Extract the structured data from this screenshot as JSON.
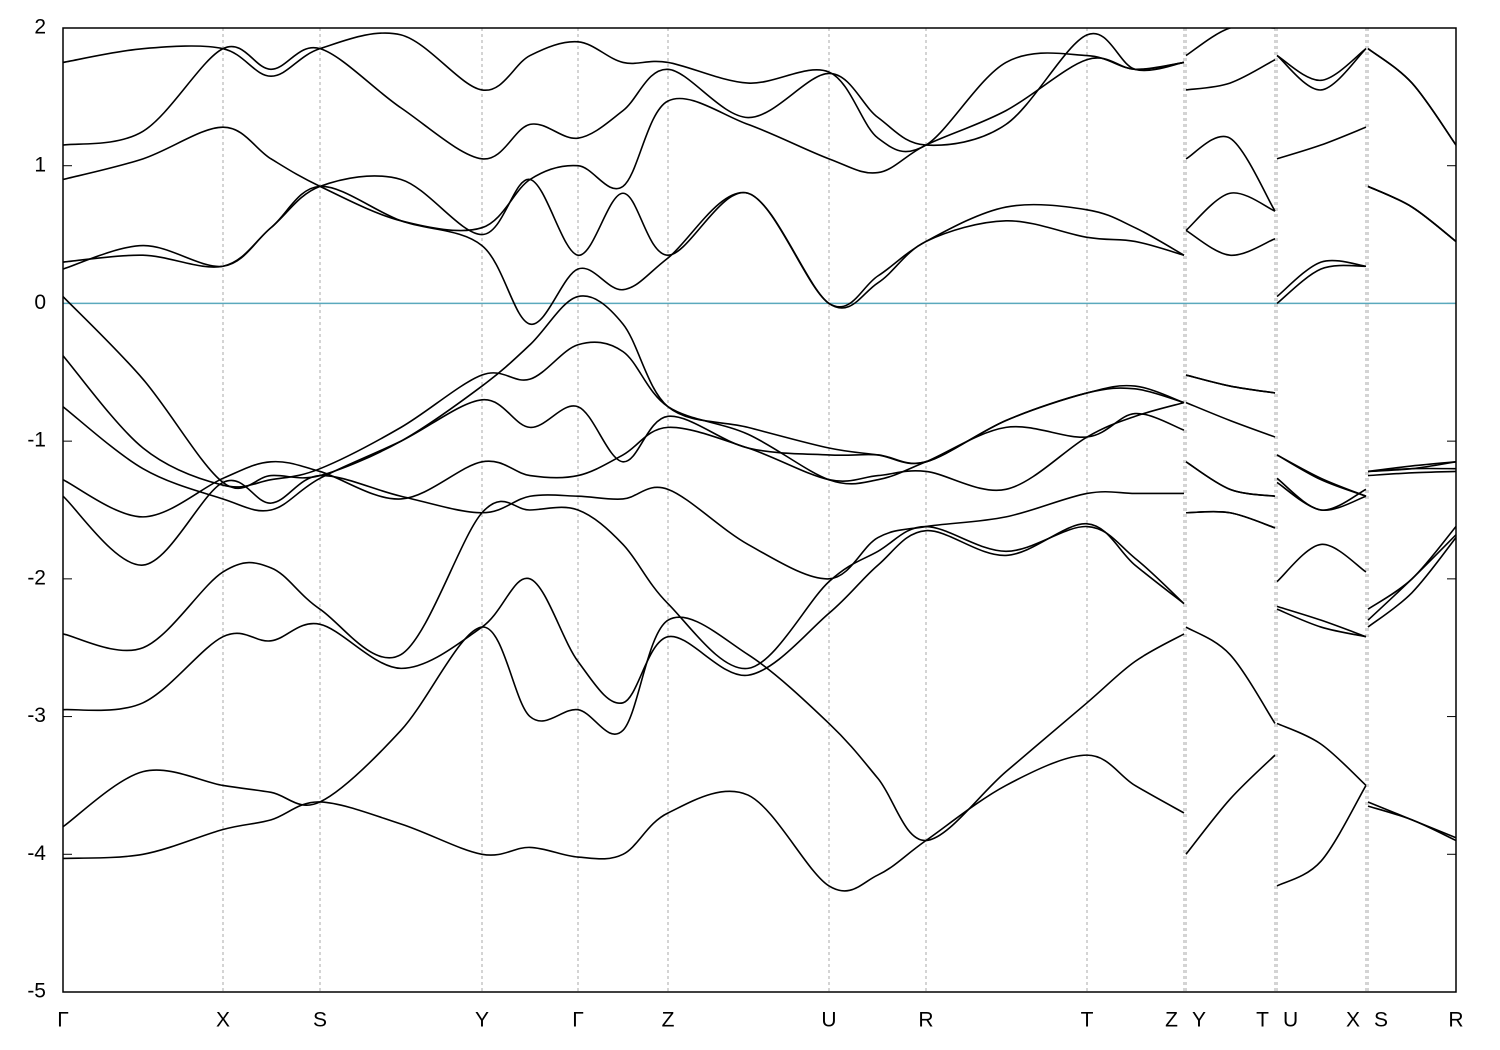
{
  "chart_data": {
    "type": "line",
    "xlim": [
      0,
      1393
    ],
    "ylim": [
      -5,
      2
    ],
    "yticks": [
      -5,
      -4,
      -3,
      -2,
      -1,
      0,
      1,
      2
    ],
    "xticks": [
      {
        "value": 0,
        "label": "Γ"
      },
      {
        "value": 160,
        "label": "X"
      },
      {
        "value": 257,
        "label": "S"
      },
      {
        "value": 419,
        "label": "Y"
      },
      {
        "value": 515,
        "label": "Γ"
      },
      {
        "value": 605,
        "label": "Z"
      },
      {
        "value": 766,
        "label": "U"
      },
      {
        "value": 863,
        "label": "R"
      },
      {
        "value": 1024,
        "label": "T"
      },
      {
        "value": 1121,
        "label": "Z"
      },
      {
        "value": 1123,
        "label": "Y"
      },
      {
        "value": 1212,
        "label": "T"
      },
      {
        "value": 1214,
        "label": "U"
      },
      {
        "value": 1303,
        "label": "X"
      },
      {
        "value": 1305,
        "label": "S"
      },
      {
        "value": 1393,
        "label": "R"
      }
    ],
    "grid": true,
    "hline": {
      "value": 0,
      "color": "#5aa9bd"
    },
    "x": [
      0,
      80,
      160,
      208,
      257,
      338,
      419,
      467,
      515,
      560,
      605,
      685,
      766,
      815,
      863,
      943,
      1024,
      1072,
      1121,
      1122,
      1123,
      1167,
      1212,
      1213,
      1214,
      1258,
      1303,
      1304,
      1305,
      1349,
      1393
    ],
    "series": [
      {
        "color": "#000000",
        "values": [
          -4.03,
          -4.0,
          -3.82,
          -3.75,
          -3.62,
          -3.78,
          -4.0,
          -3.95,
          -4.02,
          -4.0,
          -3.7,
          -3.57,
          -4.23,
          -4.15,
          -3.9,
          -3.5,
          -3.28,
          -3.5,
          -3.7,
          null,
          -4.0,
          -3.6,
          -3.28,
          null,
          -4.23,
          -4.05,
          -3.5,
          null,
          -3.65,
          -3.75,
          -3.9
        ]
      },
      {
        "color": "#000000",
        "values": [
          -3.8,
          -3.4,
          -3.5,
          -3.55,
          -3.62,
          -3.1,
          -2.35,
          -3.0,
          -2.95,
          -3.1,
          -2.3,
          -2.55,
          -3.05,
          -3.45,
          -3.9,
          -3.4,
          -2.9,
          -2.6,
          -2.4,
          null,
          -2.35,
          -2.55,
          -3.05,
          null,
          -3.05,
          -3.2,
          -3.5,
          null,
          -3.62,
          -3.75,
          -3.88
        ]
      },
      {
        "color": "#000000",
        "values": [
          -2.95,
          -2.9,
          -2.42,
          -2.45,
          -2.33,
          -2.65,
          -2.35,
          -2.0,
          -2.6,
          -2.9,
          -2.42,
          -2.7,
          -2.25,
          -1.9,
          -1.65,
          -1.83,
          -1.6,
          -1.9,
          -2.18,
          null,
          -1.52,
          -1.52,
          -1.63,
          null,
          -2.22,
          -2.35,
          -2.42,
          null,
          -2.35,
          -2.1,
          -1.7
        ]
      },
      {
        "color": "#000000",
        "values": [
          -2.4,
          -2.5,
          -1.95,
          -1.92,
          -2.22,
          -2.55,
          -1.52,
          -1.5,
          -1.5,
          -1.75,
          -2.18,
          -2.65,
          -2.02,
          -1.8,
          -1.62,
          -1.8,
          -1.62,
          -1.85,
          -2.18,
          null,
          -1.52,
          -1.52,
          -1.63,
          null,
          -2.02,
          -1.75,
          -1.95,
          null,
          -2.22,
          -2.0,
          -1.62
        ]
      },
      {
        "color": "#000000",
        "values": [
          -1.4,
          -1.9,
          -1.3,
          -1.45,
          -1.25,
          -1.4,
          -1.52,
          -1.4,
          -1.4,
          -1.42,
          -1.35,
          -1.75,
          -2.0,
          -1.7,
          -1.62,
          -1.55,
          -1.38,
          -1.38,
          -1.38,
          null,
          -1.15,
          -1.35,
          -1.4,
          null,
          -2.2,
          -2.3,
          -2.42,
          null,
          -2.3,
          -2.0,
          -1.68
        ]
      },
      {
        "color": "#000000",
        "values": [
          -1.28,
          -1.55,
          -1.27,
          -1.15,
          -1.22,
          -1.42,
          -1.15,
          -1.25,
          -1.25,
          -1.1,
          -0.9,
          -1.05,
          -1.28,
          -1.25,
          -1.22,
          -1.35,
          -0.97,
          -0.82,
          -0.72,
          null,
          -0.52,
          -0.6,
          -0.65,
          null,
          -1.1,
          -1.27,
          -1.4,
          null,
          -1.22,
          -1.2,
          -1.15
        ]
      },
      {
        "color": "#000000",
        "values": [
          -0.75,
          -1.2,
          -1.42,
          -1.5,
          -1.27,
          -1.0,
          -0.7,
          -0.9,
          -0.75,
          -1.15,
          -0.82,
          -1.05,
          -1.1,
          -1.1,
          -1.15,
          -0.85,
          -0.65,
          -0.6,
          -0.72,
          null,
          -0.72,
          -0.85,
          -0.97,
          null,
          -1.27,
          -1.5,
          -1.35,
          null,
          -1.22,
          -1.2,
          -1.2
        ]
      },
      {
        "color": "#000000",
        "values": [
          -0.38,
          -1.05,
          -1.32,
          -1.28,
          -1.2,
          -0.9,
          -0.52,
          -0.55,
          -0.3,
          -0.35,
          -0.75,
          -0.95,
          -1.28,
          -1.28,
          -1.15,
          -0.9,
          -0.97,
          -0.8,
          -0.92,
          null,
          -1.15,
          -1.35,
          -1.4,
          null,
          -1.3,
          -1.5,
          -1.4,
          null,
          -1.25,
          -1.23,
          -1.22
        ]
      },
      {
        "color": "#000000",
        "values": [
          0.05,
          -0.55,
          -1.3,
          -1.25,
          -1.25,
          -1.0,
          -0.6,
          -0.3,
          0.05,
          -0.15,
          -0.75,
          -0.9,
          -1.05,
          -1.1,
          -1.15,
          -0.85,
          -0.65,
          -0.62,
          -0.72,
          null,
          -0.52,
          -0.6,
          -0.65,
          null,
          -1.1,
          -1.28,
          -1.4,
          null,
          -1.22,
          -1.18,
          -1.15
        ]
      },
      {
        "color": "#000000",
        "values": [
          0.3,
          0.35,
          0.27,
          0.55,
          0.85,
          0.6,
          0.42,
          -0.15,
          0.25,
          0.1,
          0.33,
          0.8,
          0.0,
          0.15,
          0.45,
          0.6,
          0.48,
          0.45,
          0.35,
          null,
          0.53,
          0.35,
          0.47,
          null,
          0.0,
          0.25,
          0.27,
          null,
          0.85,
          0.7,
          0.45
        ]
      },
      {
        "color": "#000000",
        "values": [
          0.25,
          0.42,
          0.27,
          0.55,
          0.85,
          0.9,
          0.5,
          0.9,
          0.35,
          0.8,
          0.35,
          0.8,
          0.0,
          0.2,
          0.45,
          0.7,
          0.68,
          0.55,
          0.35,
          null,
          0.53,
          0.8,
          0.67,
          null,
          0.05,
          0.3,
          0.27,
          null,
          0.85,
          0.7,
          0.45
        ]
      },
      {
        "color": "#000000",
        "values": [
          0.9,
          1.05,
          1.28,
          1.05,
          0.85,
          0.6,
          0.55,
          0.9,
          1.0,
          0.85,
          1.47,
          1.3,
          1.05,
          0.95,
          1.15,
          1.4,
          1.77,
          1.7,
          1.75,
          null,
          1.05,
          1.2,
          0.67,
          null,
          1.05,
          1.15,
          1.28,
          null,
          0.85,
          0.7,
          0.45
        ]
      },
      {
        "color": "#000000",
        "values": [
          1.15,
          1.25,
          1.85,
          1.7,
          1.85,
          1.42,
          1.05,
          1.3,
          1.2,
          1.4,
          1.7,
          1.35,
          1.67,
          1.35,
          1.15,
          1.3,
          1.95,
          1.7,
          1.75,
          null,
          1.55,
          1.6,
          1.77,
          null,
          1.8,
          1.55,
          1.85,
          null,
          1.85,
          1.6,
          1.15
        ]
      },
      {
        "color": "#000000",
        "values": [
          1.75,
          1.85,
          1.85,
          1.65,
          1.85,
          1.95,
          1.55,
          1.8,
          1.9,
          1.75,
          1.75,
          1.6,
          1.68,
          1.2,
          1.15,
          1.75,
          1.8,
          1.7,
          1.75,
          null,
          1.8,
          2.0,
          2.0,
          null,
          1.8,
          1.62,
          1.85,
          null,
          1.85,
          1.6,
          1.15
        ]
      }
    ]
  }
}
